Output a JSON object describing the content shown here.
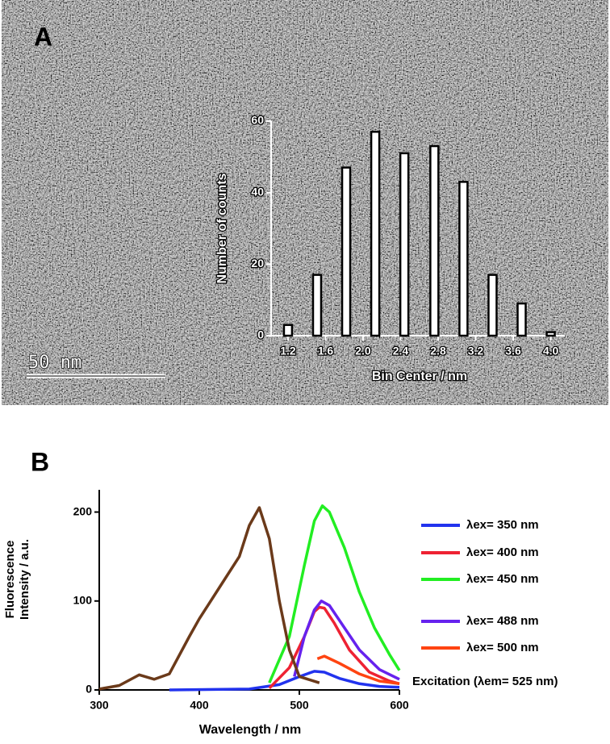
{
  "chart_data": [
    {
      "type": "bar",
      "panel_label": "A",
      "scale_bar_label": "50 nm",
      "x_label": "Bin Center / nm",
      "y_label": "Number of counts",
      "x": [
        1.2,
        1.51,
        1.82,
        2.13,
        2.44,
        2.76,
        3.07,
        3.38,
        3.69,
        4.0
      ],
      "values": [
        3,
        17,
        47,
        57,
        51,
        53,
        43,
        17,
        9,
        1
      ],
      "color": "#ffffff",
      "xlim": [
        1.02,
        4.15
      ],
      "ylim": [
        0,
        60
      ],
      "xticks": [
        1.2,
        1.6,
        {
          "value": 2,
          "label": "2.0"
        },
        2.4,
        2.8,
        3.2,
        3.6,
        {
          "value": 4,
          "label": "4.0"
        }
      ],
      "yticks": [
        0,
        20,
        40,
        60
      ]
    },
    {
      "type": "line",
      "panel_label": "B",
      "x_label": "Wavelength / nm",
      "y_label": "Fluorescence Intensity / a.u.",
      "xlim": [
        300,
        600
      ],
      "ylim": [
        0,
        225
      ],
      "xticks": [
        300,
        400,
        500,
        600
      ],
      "yticks": [
        0,
        100,
        200
      ],
      "series": [
        {
          "name": "λex= 350 nm",
          "color": "#2233ee",
          "x": [
            370,
            450,
            480,
            500,
            515,
            525,
            540,
            560,
            580,
            600
          ],
          "values": [
            0,
            1,
            6,
            15,
            21,
            20,
            13,
            7,
            4,
            3
          ]
        },
        {
          "name": "λex= 400 nm",
          "color": "#ee2233",
          "x": [
            470,
            490,
            505,
            515,
            520,
            525,
            535,
            550,
            570,
            590,
            600
          ],
          "values": [
            2,
            25,
            60,
            88,
            93,
            92,
            75,
            45,
            20,
            10,
            7
          ]
        },
        {
          "name": "λex= 450 nm",
          "color": "#22ee22",
          "x": [
            470,
            490,
            505,
            515,
            523,
            530,
            545,
            560,
            575,
            590,
            600
          ],
          "values": [
            8,
            60,
            140,
            190,
            207,
            200,
            160,
            110,
            70,
            40,
            22
          ]
        },
        {
          "name": "λex= 488 nm",
          "color": "#6622ee",
          "x": [
            495,
            505,
            515,
            522,
            530,
            545,
            560,
            580,
            600
          ],
          "values": [
            15,
            60,
            90,
            100,
            95,
            70,
            45,
            23,
            12
          ]
        },
        {
          "name": "λex= 500 nm",
          "color": "#ff4411",
          "x": [
            518,
            525,
            540,
            560,
            580,
            600
          ],
          "values": [
            35,
            38,
            30,
            18,
            10,
            7
          ]
        },
        {
          "name": "Excitation (λem= 525 nm)",
          "color": "#6b3a1a",
          "x": [
            300,
            320,
            340,
            355,
            370,
            390,
            400,
            420,
            440,
            450,
            460,
            470,
            480,
            490,
            500,
            520
          ],
          "values": [
            1,
            5,
            17,
            12,
            18,
            60,
            80,
            115,
            150,
            185,
            205,
            170,
            100,
            45,
            15,
            8
          ]
        }
      ]
    }
  ]
}
